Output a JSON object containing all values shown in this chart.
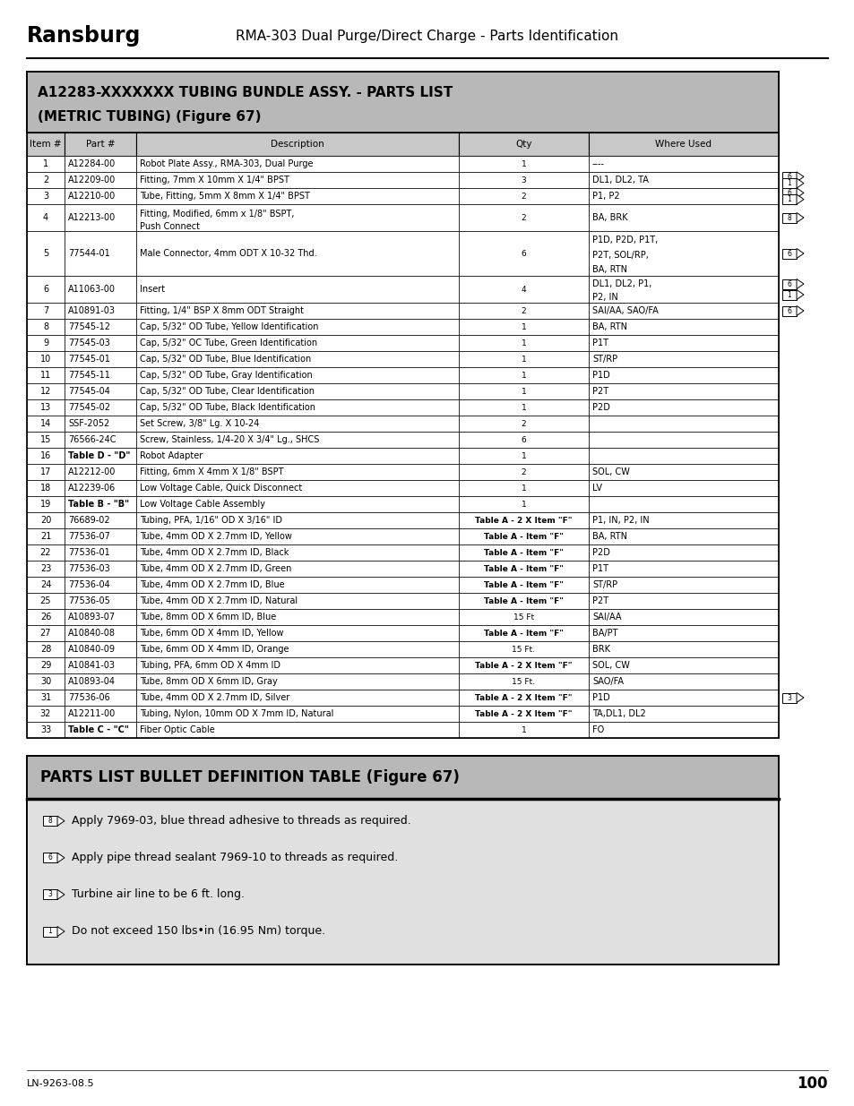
{
  "header_title": "RMA-303 Dual Purge/Direct Charge - Parts Identification",
  "brand": "Ransburg",
  "page_num": "100",
  "footer_left": "LN-9263-08.5",
  "table1_title_line1": "A12283-XXXXXXX TUBING BUNDLE ASSY. - PARTS LIST",
  "table1_title_line2": "(METRIC TUBING) (Figure 67)",
  "col_headers": [
    "Item #",
    "Part #",
    "Description",
    "Qty",
    "Where Used"
  ],
  "rows": [
    [
      "1",
      "A12284-00",
      "Robot Plate Assy., RMA-303, Dual Purge",
      "1",
      "----",
      ""
    ],
    [
      "2",
      "A12209-00",
      "Fitting, 7mm X 10mm X 1/4\" BPST",
      "3",
      "DL1, DL2, TA",
      "6,1"
    ],
    [
      "3",
      "A12210-00",
      "Tube, Fitting, 5mm X 8mm X 1/4\" BPST",
      "2",
      "P1, P2",
      "6,1"
    ],
    [
      "4",
      "A12213-00",
      "Fitting, Modified, 6mm x 1/8\" BSPT,\nPush Connect",
      "2",
      "BA, BRK",
      "8"
    ],
    [
      "5",
      "77544-01",
      "Male Connector, 4mm ODT X 10-32 Thd.",
      "6",
      "P1D, P2D, P1T,\nP2T, SOL/RP,\nBA, RTN",
      "6"
    ],
    [
      "6",
      "A11063-00",
      "Insert",
      "4",
      "DL1, DL2, P1,\nP2, IN",
      "6,1"
    ],
    [
      "7",
      "A10891-03",
      "Fitting, 1/4\" BSP X 8mm ODT Straight",
      "2",
      "SAI/AA, SAO/FA",
      "6"
    ],
    [
      "8",
      "77545-12",
      "Cap, 5/32\" OD Tube, Yellow Identification",
      "1",
      "BA, RTN",
      ""
    ],
    [
      "9",
      "77545-03",
      "Cap, 5/32\" OC Tube, Green Identification",
      "1",
      "P1T",
      ""
    ],
    [
      "10",
      "77545-01",
      "Cap, 5/32\" OD Tube, Blue Identification",
      "1",
      "ST/RP",
      ""
    ],
    [
      "11",
      "77545-11",
      "Cap, 5/32\" OD Tube, Gray Identification",
      "1",
      "P1D",
      ""
    ],
    [
      "12",
      "77545-04",
      "Cap, 5/32\" OD Tube, Clear Identification",
      "1",
      "P2T",
      ""
    ],
    [
      "13",
      "77545-02",
      "Cap, 5/32\" OD Tube, Black Identification",
      "1",
      "P2D",
      ""
    ],
    [
      "14",
      "SSF-2052",
      "Set Screw, 3/8\" Lg. X 10-24",
      "2",
      "",
      ""
    ],
    [
      "15",
      "76566-24C",
      "Screw, Stainless, 1/4-20 X 3/4\" Lg., SHCS",
      "6",
      "",
      ""
    ],
    [
      "16",
      "Table D - \"D\"",
      "Robot Adapter",
      "1",
      "",
      ""
    ],
    [
      "17",
      "A12212-00",
      "Fitting, 6mm X 4mm X 1/8\" BSPT",
      "2",
      "SOL, CW",
      ""
    ],
    [
      "18",
      "A12239-06",
      "Low Voltage Cable, Quick Disconnect",
      "1",
      "LV",
      ""
    ],
    [
      "19",
      "Table B - \"B\"",
      "Low Voltage Cable Assembly",
      "1",
      "",
      ""
    ],
    [
      "20",
      "76689-02",
      "Tubing, PFA, 1/16\" OD X 3/16\" ID",
      "Table A - 2 X Item \"F\"",
      "P1, IN, P2, IN",
      ""
    ],
    [
      "21",
      "77536-07",
      "Tube, 4mm OD X 2.7mm ID, Yellow",
      "Table A - Item \"F\"",
      "BA, RTN",
      ""
    ],
    [
      "22",
      "77536-01",
      "Tube, 4mm OD X 2.7mm ID, Black",
      "Table A - Item \"F\"",
      "P2D",
      ""
    ],
    [
      "23",
      "77536-03",
      "Tube, 4mm OD X 2.7mm ID, Green",
      "Table A - Item \"F\"",
      "P1T",
      ""
    ],
    [
      "24",
      "77536-04",
      "Tube, 4mm OD X 2.7mm ID, Blue",
      "Table A - Item \"F\"",
      "ST/RP",
      ""
    ],
    [
      "25",
      "77536-05",
      "Tube, 4mm OD X 2.7mm ID, Natural",
      "Table A - Item \"F\"",
      "P2T",
      ""
    ],
    [
      "26",
      "A10893-07",
      "Tube, 8mm OD X 6mm ID, Blue",
      "15 Ft",
      "SAI/AA",
      ""
    ],
    [
      "27",
      "A10840-08",
      "Tube, 6mm OD X 4mm ID, Yellow",
      "Table A - Item \"F\"",
      "BA/PT",
      ""
    ],
    [
      "28",
      "A10840-09",
      "Tube, 6mm OD X 4mm ID, Orange",
      "15 Ft.",
      "BRK",
      ""
    ],
    [
      "29",
      "A10841-03",
      "Tubing, PFA, 6mm OD X 4mm ID",
      "Table A - 2 X Item \"F\"",
      "SOL, CW",
      ""
    ],
    [
      "30",
      "A10893-04",
      "Tube, 8mm OD X 6mm ID, Gray",
      "15 Ft.",
      "SAO/FA",
      ""
    ],
    [
      "31",
      "77536-06",
      "Tube, 4mm OD X 2.7mm ID, Silver",
      "Table A - 2 X Item \"F\"",
      "P1D",
      "3"
    ],
    [
      "32",
      "A12211-00",
      "Tubing, Nylon, 10mm OD X 7mm ID, Natural",
      "Table A - 2 X Item \"F\"",
      "TA,DL1, DL2",
      ""
    ],
    [
      "33",
      "Table C - \"C\"",
      "Fiber Optic Cable",
      "1",
      "FO",
      ""
    ]
  ],
  "table2_title": "PARTS LIST BULLET DEFINITION TABLE (Figure 67)",
  "bullets": [
    [
      "8",
      "Apply 7969-03, blue thread adhesive to threads as required."
    ],
    [
      "6",
      "Apply pipe thread sealant 7969-10 to threads as required."
    ],
    [
      "3",
      "Turbine air line to be 6 ft. long."
    ],
    [
      "1",
      "Do not exceed 150 lbs•in (16.95 Nm) torque."
    ]
  ],
  "bg_color": "#ffffff",
  "table_header_bg": "#c8c8c8",
  "table1_title_bg": "#b8b8b8",
  "table2_title_bg": "#b8b8b8",
  "table2_content_bg": "#e0e0e0",
  "border_color": "#000000"
}
